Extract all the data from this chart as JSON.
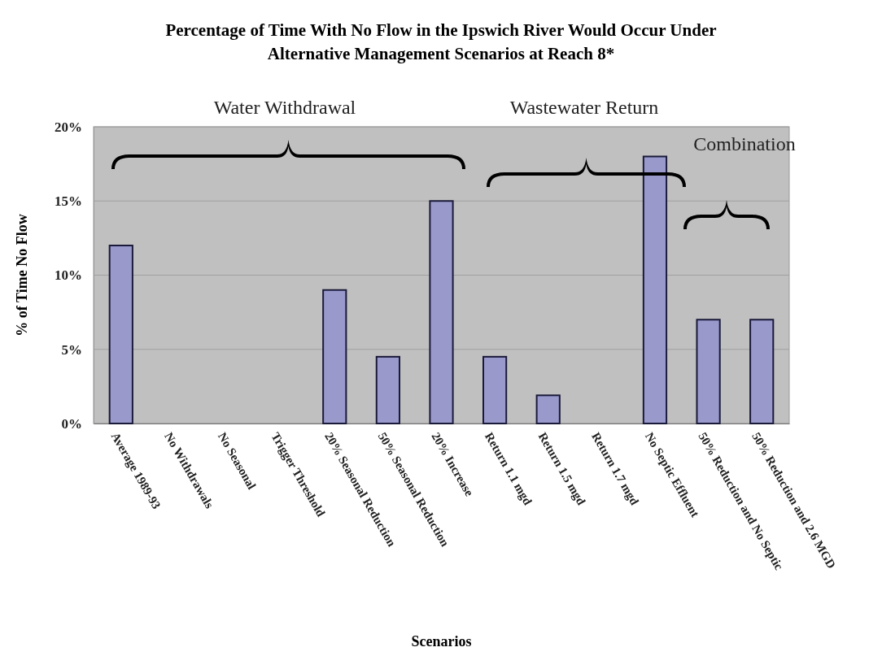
{
  "chart_data": {
    "type": "bar",
    "title": "Percentage of Time With No Flow in the Ipswich River Would Occur Under Alternative Management Scenarios at Reach 8*",
    "xlabel": "Scenarios",
    "ylabel": "% of Time No Flow",
    "categories": [
      "Average 1989-93",
      "No Withdrawals",
      "No Seasonal",
      "Trigger Threshold",
      "20% Seasonal Reduction",
      "50% Seasonal Reduction",
      "20% Increase",
      "Return 1.1 mgd",
      "Return 1.5 mgd",
      "Return 1.7 mgd",
      "No Septic Effluent",
      "50% Reduction and No Septic",
      "50% Reduction and 2.6 MGD"
    ],
    "values": [
      12,
      0,
      0,
      0,
      9,
      4.5,
      15,
      4.5,
      1.9,
      0,
      18,
      7,
      7
    ],
    "color": "#9999cc",
    "ylim": [
      0,
      20
    ],
    "yticks": [
      {
        "value": 0,
        "label": "0%"
      },
      {
        "value": 5,
        "label": "5%"
      },
      {
        "value": 10,
        "label": "10%"
      },
      {
        "value": 15,
        "label": "15%"
      },
      {
        "value": 20,
        "label": "20%"
      }
    ],
    "grid": "y",
    "annotations": [
      "Water Withdrawal",
      "Wastewater Return",
      "Combination"
    ]
  }
}
